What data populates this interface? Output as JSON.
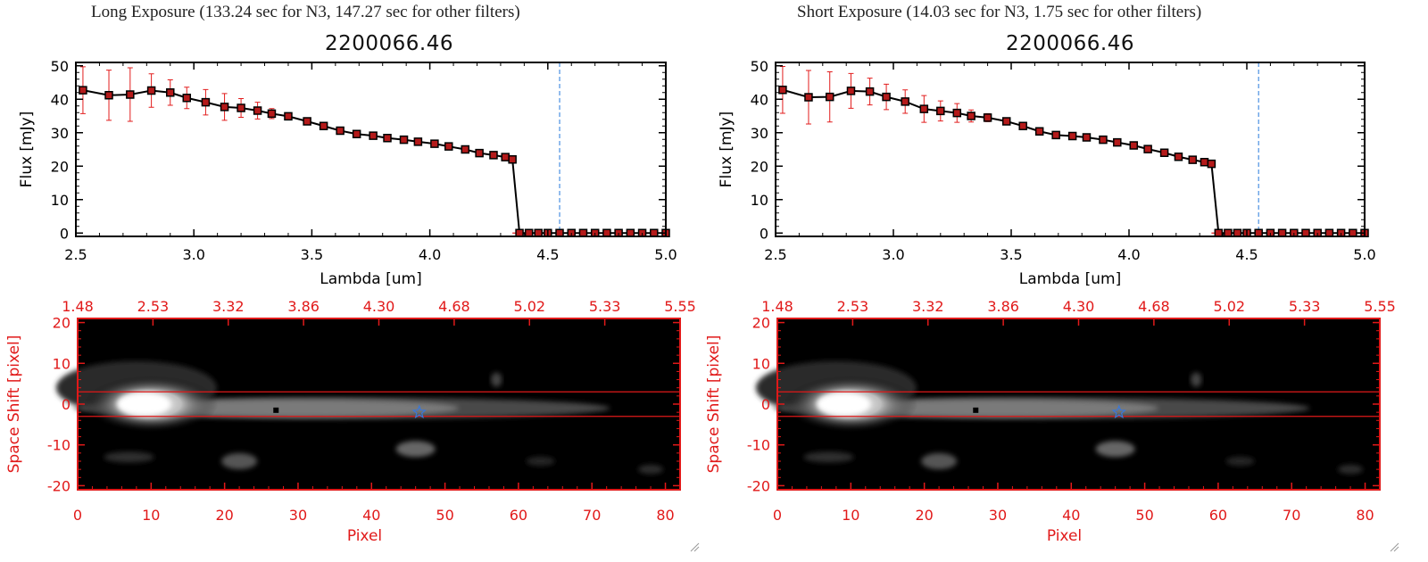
{
  "panels": [
    {
      "heading": "Long Exposure (133.24 sec for N3, 147.27 sec for other filters)",
      "object_id": "2200066.46"
    },
    {
      "heading": "Short Exposure (14.03 sec for N3, 1.75 sec for other filters)",
      "object_id": "2200066.46"
    }
  ],
  "colors": {
    "axis": "#000000",
    "point_fill": "#b41a1a",
    "errorbar": "#e21d1d",
    "marker_line": "#4a90e2",
    "image_axis": "#e11919",
    "star": "#3a78d8"
  },
  "chart_data": [
    {
      "type": "line",
      "title": "2200066.46",
      "xlabel": "Lambda [um]",
      "ylabel": "Flux [mJy]",
      "xlim": [
        2.5,
        5.0
      ],
      "ylim": [
        -1,
        51
      ],
      "xticks": [
        "2.5",
        "3.0",
        "3.5",
        "4.0",
        "4.5",
        "5.0"
      ],
      "yticks": [
        "0",
        "10",
        "20",
        "30",
        "40",
        "50"
      ],
      "vline_x": 4.55,
      "x": [
        2.53,
        2.64,
        2.73,
        2.82,
        2.9,
        2.97,
        3.05,
        3.13,
        3.2,
        3.27,
        3.33,
        3.4,
        3.48,
        3.55,
        3.62,
        3.69,
        3.76,
        3.82,
        3.89,
        3.95,
        4.02,
        4.08,
        4.15,
        4.21,
        4.27,
        4.32,
        4.35,
        4.38,
        4.42,
        4.46,
        4.5,
        4.55,
        4.6,
        4.65,
        4.7,
        4.75,
        4.8,
        4.85,
        4.9,
        4.95,
        5.0
      ],
      "y": [
        42.7,
        41.2,
        41.4,
        42.6,
        42.0,
        40.4,
        39.1,
        37.7,
        37.4,
        36.6,
        35.7,
        34.9,
        33.4,
        32.0,
        30.6,
        29.6,
        29.1,
        28.4,
        27.9,
        27.3,
        26.7,
        25.9,
        25.0,
        23.9,
        23.3,
        22.7,
        22.0,
        0,
        0,
        0,
        0,
        0,
        0,
        0,
        0,
        0,
        0,
        0,
        0,
        0,
        0
      ],
      "err": [
        7.0,
        7.5,
        8.0,
        5.0,
        3.8,
        3.2,
        3.8,
        4.0,
        2.8,
        2.5,
        1.5,
        1.0,
        0.8,
        0.6,
        0.5,
        0.5,
        0.4,
        0.4,
        0.4,
        0.4,
        0.4,
        0.4,
        0.4,
        0.4,
        0.4,
        0.4,
        0.4,
        0,
        0,
        0,
        0,
        0,
        0,
        0,
        0,
        0,
        0,
        0,
        0,
        0,
        0
      ]
    },
    {
      "type": "line",
      "title": "2200066.46",
      "xlabel": "Lambda [um]",
      "ylabel": "Flux [mJy]",
      "xlim": [
        2.5,
        5.0
      ],
      "ylim": [
        -1,
        51
      ],
      "xticks": [
        "2.5",
        "3.0",
        "3.5",
        "4.0",
        "4.5",
        "5.0"
      ],
      "yticks": [
        "0",
        "10",
        "20",
        "30",
        "40",
        "50"
      ],
      "vline_x": 4.55,
      "x": [
        2.53,
        2.64,
        2.73,
        2.82,
        2.9,
        2.97,
        3.05,
        3.13,
        3.2,
        3.27,
        3.33,
        3.4,
        3.48,
        3.55,
        3.62,
        3.69,
        3.76,
        3.82,
        3.89,
        3.95,
        4.02,
        4.08,
        4.15,
        4.21,
        4.27,
        4.32,
        4.35,
        4.38,
        4.42,
        4.46,
        4.5,
        4.55,
        4.6,
        4.65,
        4.7,
        4.75,
        4.8,
        4.85,
        4.9,
        4.95,
        5.0
      ],
      "y": [
        42.8,
        40.6,
        40.7,
        42.5,
        42.3,
        40.7,
        39.3,
        37.1,
        36.5,
        35.9,
        35.0,
        34.5,
        33.4,
        32.0,
        30.4,
        29.3,
        29.0,
        28.6,
        27.9,
        27.1,
        26.2,
        25.1,
        24.0,
        22.8,
        21.9,
        21.2,
        20.7,
        0,
        0,
        0,
        0,
        0,
        0,
        0,
        0,
        0,
        0,
        0,
        0,
        0,
        0
      ],
      "err": [
        7.0,
        8.0,
        7.5,
        5.2,
        4.0,
        3.8,
        3.5,
        4.0,
        3.0,
        2.8,
        1.8,
        1.2,
        0.8,
        0.6,
        0.5,
        0.5,
        0.4,
        0.4,
        0.4,
        0.4,
        0.4,
        0.4,
        0.4,
        0.4,
        0.4,
        0.4,
        0.4,
        0,
        0,
        0,
        0,
        0,
        0,
        0,
        0,
        0,
        0,
        0,
        0,
        0,
        0
      ]
    },
    {
      "type": "heatmap",
      "xlabel": "Pixel",
      "ylabel": "Space Shift [pixel]",
      "xlim": [
        0,
        82
      ],
      "ylim": [
        -21,
        21
      ],
      "xticks": [
        "0",
        "10",
        "20",
        "30",
        "40",
        "50",
        "60",
        "70",
        "80"
      ],
      "yticks": [
        "-20",
        "-10",
        "0",
        "10",
        "20"
      ],
      "top_ticks": [
        "1.48",
        "2.53",
        "3.32",
        "3.86",
        "4.30",
        "4.68",
        "5.02",
        "5.33",
        "5.55"
      ],
      "hlines_y": [
        3,
        -3
      ],
      "source_pixel": [
        27,
        -1.5
      ],
      "star_pixel": [
        46.5,
        -2
      ]
    },
    {
      "type": "heatmap",
      "xlabel": "Pixel",
      "ylabel": "Space Shift [pixel]",
      "xlim": [
        0,
        82
      ],
      "ylim": [
        -21,
        21
      ],
      "xticks": [
        "0",
        "10",
        "20",
        "30",
        "40",
        "50",
        "60",
        "70",
        "80"
      ],
      "yticks": [
        "-20",
        "-10",
        "0",
        "10",
        "20"
      ],
      "top_ticks": [
        "1.48",
        "2.53",
        "3.32",
        "3.86",
        "4.30",
        "4.68",
        "5.02",
        "5.33",
        "5.55"
      ],
      "hlines_y": [
        3,
        -3
      ],
      "source_pixel": [
        27,
        -1.5
      ],
      "star_pixel": [
        46.5,
        -2
      ]
    }
  ]
}
